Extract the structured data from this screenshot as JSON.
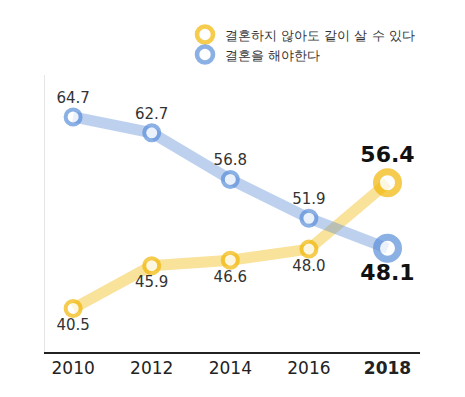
{
  "chart_data": {
    "type": "line",
    "categories": [
      "2010",
      "2012",
      "2014",
      "2016",
      "2018"
    ],
    "series": [
      {
        "name": "결혼하지 않아도 같이 살 수 있다",
        "color": "#f2b705",
        "values": [
          40.5,
          45.9,
          46.6,
          48.0,
          56.4
        ],
        "value_labels": [
          "40.5",
          "45.9",
          "46.6",
          "48.0",
          "56.4"
        ]
      },
      {
        "name": "결혼을 해야한다",
        "color": "#5b8fd9",
        "values": [
          64.7,
          62.7,
          56.8,
          51.9,
          48.1
        ]
      }
    ],
    "ylim": [
      35,
      70
    ],
    "data_labels": true,
    "tick_labels": "x",
    "legend": "top right",
    "marker": "circle"
  }
}
